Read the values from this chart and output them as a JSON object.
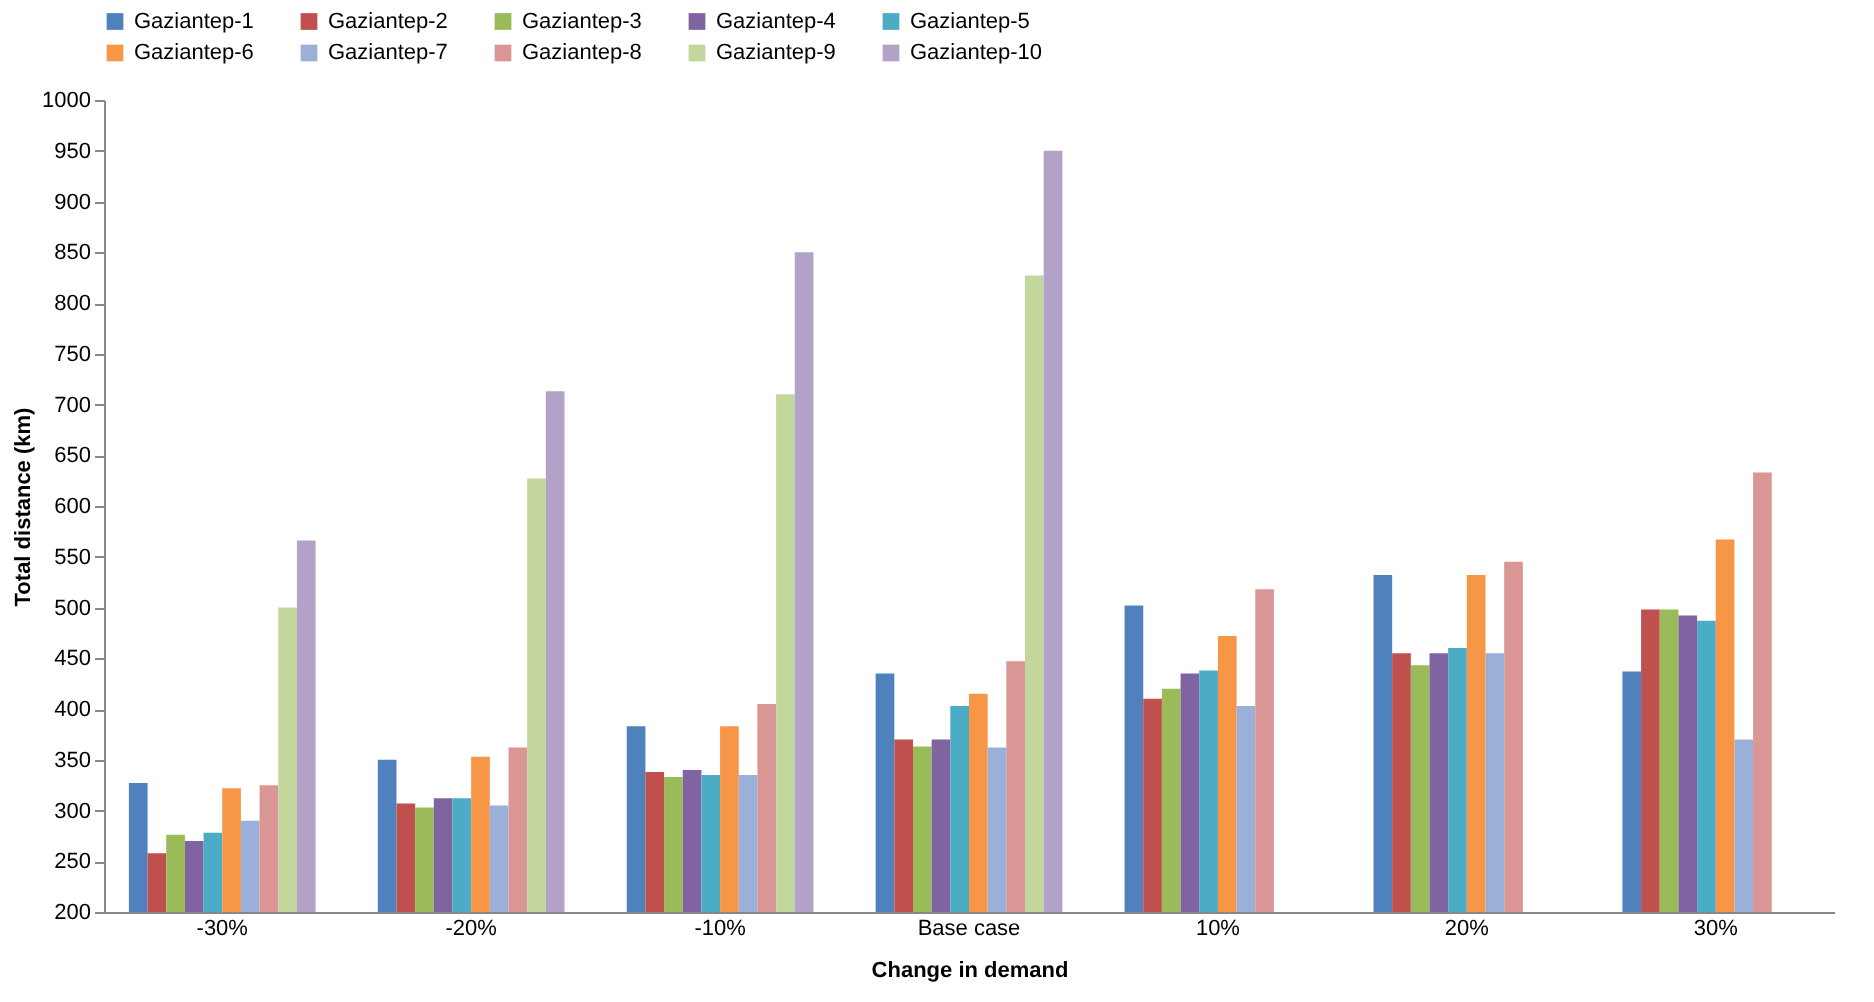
{
  "chart_data": {
    "type": "bar",
    "xlabel": "Change in demand",
    "ylabel": "Total distance (km)",
    "categories": [
      "-30%",
      "-20%",
      "-10%",
      "Base case",
      "10%",
      "20%",
      "30%"
    ],
    "ylim": [
      200,
      1000
    ],
    "yticks": [
      200,
      250,
      300,
      350,
      400,
      450,
      500,
      550,
      600,
      650,
      700,
      750,
      800,
      850,
      900,
      950,
      1000
    ],
    "grid": false,
    "legend": "top",
    "series": [
      {
        "name": "Gaziantep-1",
        "color": "#4f81bd",
        "values": [
          327,
          350,
          383,
          435,
          502,
          532,
          437
        ]
      },
      {
        "name": "Gaziantep-2",
        "color": "#c0504d",
        "values": [
          258,
          307,
          338,
          370,
          410,
          455,
          498
        ]
      },
      {
        "name": "Gaziantep-3",
        "color": "#9bbb59",
        "values": [
          276,
          303,
          333,
          363,
          420,
          443,
          498
        ]
      },
      {
        "name": "Gaziantep-4",
        "color": "#8064a2",
        "values": [
          270,
          312,
          340,
          370,
          435,
          455,
          492
        ]
      },
      {
        "name": "Gaziantep-5",
        "color": "#4bacc6",
        "values": [
          278,
          312,
          335,
          403,
          438,
          460,
          487
        ]
      },
      {
        "name": "Gaziantep-6",
        "color": "#f79646",
        "values": [
          322,
          353,
          383,
          415,
          472,
          532,
          567
        ]
      },
      {
        "name": "Gaziantep-7",
        "color": "#9bb0d8",
        "values": [
          290,
          305,
          335,
          362,
          403,
          455,
          370
        ]
      },
      {
        "name": "Gaziantep-8",
        "color": "#d99694",
        "values": [
          325,
          362,
          405,
          447,
          518,
          545,
          633
        ]
      },
      {
        "name": "Gaziantep-9",
        "color": "#c3d69b",
        "values": [
          500,
          627,
          710,
          827,
          null,
          null,
          null
        ]
      },
      {
        "name": "Gaziantep-10",
        "color": "#b3a2c7",
        "values": [
          566,
          713,
          850,
          950,
          null,
          null,
          null
        ]
      }
    ]
  }
}
